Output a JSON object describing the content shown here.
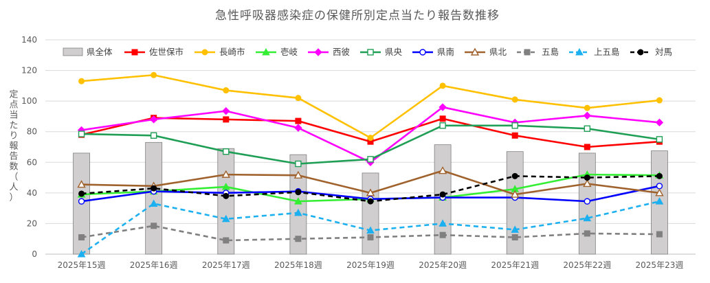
{
  "chart_data": {
    "type": "line",
    "title": "急性呼吸器感染症の保健所別定点当たり報告数推移",
    "ylabel": "定点当たり報告数（人）",
    "xlabel": "",
    "ylim": [
      0,
      140
    ],
    "yticks": [
      0,
      20,
      40,
      60,
      80,
      100,
      120,
      140
    ],
    "grid": true,
    "legend_position": "top",
    "categories": [
      "2025年15週",
      "2025年16週",
      "2025年17週",
      "2025年18週",
      "2025年19週",
      "2025年20週",
      "2025年21週",
      "2025年22週",
      "2025年23週"
    ],
    "bar_series": {
      "name": "県全体",
      "values": [
        66,
        73,
        69,
        65,
        53,
        71.5,
        67,
        66,
        67.5
      ],
      "color": "#d0cece",
      "border": "#7f7f7f"
    },
    "series": [
      {
        "name": "佐世保市",
        "values": [
          78,
          89,
          88,
          87,
          73.5,
          88.5,
          77.5,
          70,
          73.5
        ],
        "color": "#ff0000",
        "marker": "square",
        "dash": false
      },
      {
        "name": "長崎市",
        "values": [
          113,
          117,
          107,
          102,
          76,
          110,
          101,
          95.5,
          100.5
        ],
        "color": "#ffc000",
        "marker": "circle",
        "dash": false
      },
      {
        "name": "壱岐",
        "values": [
          39,
          41,
          44,
          34.5,
          36,
          37,
          42.5,
          52,
          51.5
        ],
        "color": "#33ee33",
        "marker": "triangle",
        "dash": false
      },
      {
        "name": "西彼",
        "values": [
          81,
          88,
          93.5,
          82.5,
          60,
          96,
          86,
          90.5,
          86
        ],
        "color": "#ff00ff",
        "marker": "diamond",
        "dash": false
      },
      {
        "name": "県央",
        "values": [
          78.5,
          77.5,
          67,
          59,
          62,
          84,
          84,
          82,
          75
        ],
        "color": "#1f9e55",
        "marker": "square-open",
        "dash": false
      },
      {
        "name": "県南",
        "values": [
          34.5,
          41,
          40,
          41,
          36,
          37,
          37,
          34.5,
          44.5
        ],
        "color": "#0000ff",
        "marker": "circle-open",
        "dash": false
      },
      {
        "name": "県北",
        "values": [
          45.5,
          44.5,
          52,
          51.5,
          40,
          54.5,
          39,
          46,
          40
        ],
        "color": "#a0622d",
        "marker": "triangle-open",
        "dash": false
      },
      {
        "name": "五島",
        "values": [
          11,
          18.5,
          9,
          10,
          11,
          12.5,
          11,
          13.5,
          13
        ],
        "color": "#808080",
        "marker": "square",
        "dash": true
      },
      {
        "name": "上五島",
        "values": [
          0,
          33,
          23,
          27,
          15.5,
          20,
          16,
          23.5,
          34.5
        ],
        "color": "#1cb0f0",
        "marker": "triangle",
        "dash": true
      },
      {
        "name": "対馬",
        "values": [
          39.5,
          43,
          38,
          40.5,
          34.5,
          39,
          51,
          50,
          51
        ],
        "color": "#000000",
        "marker": "circle",
        "dash": true
      }
    ]
  }
}
